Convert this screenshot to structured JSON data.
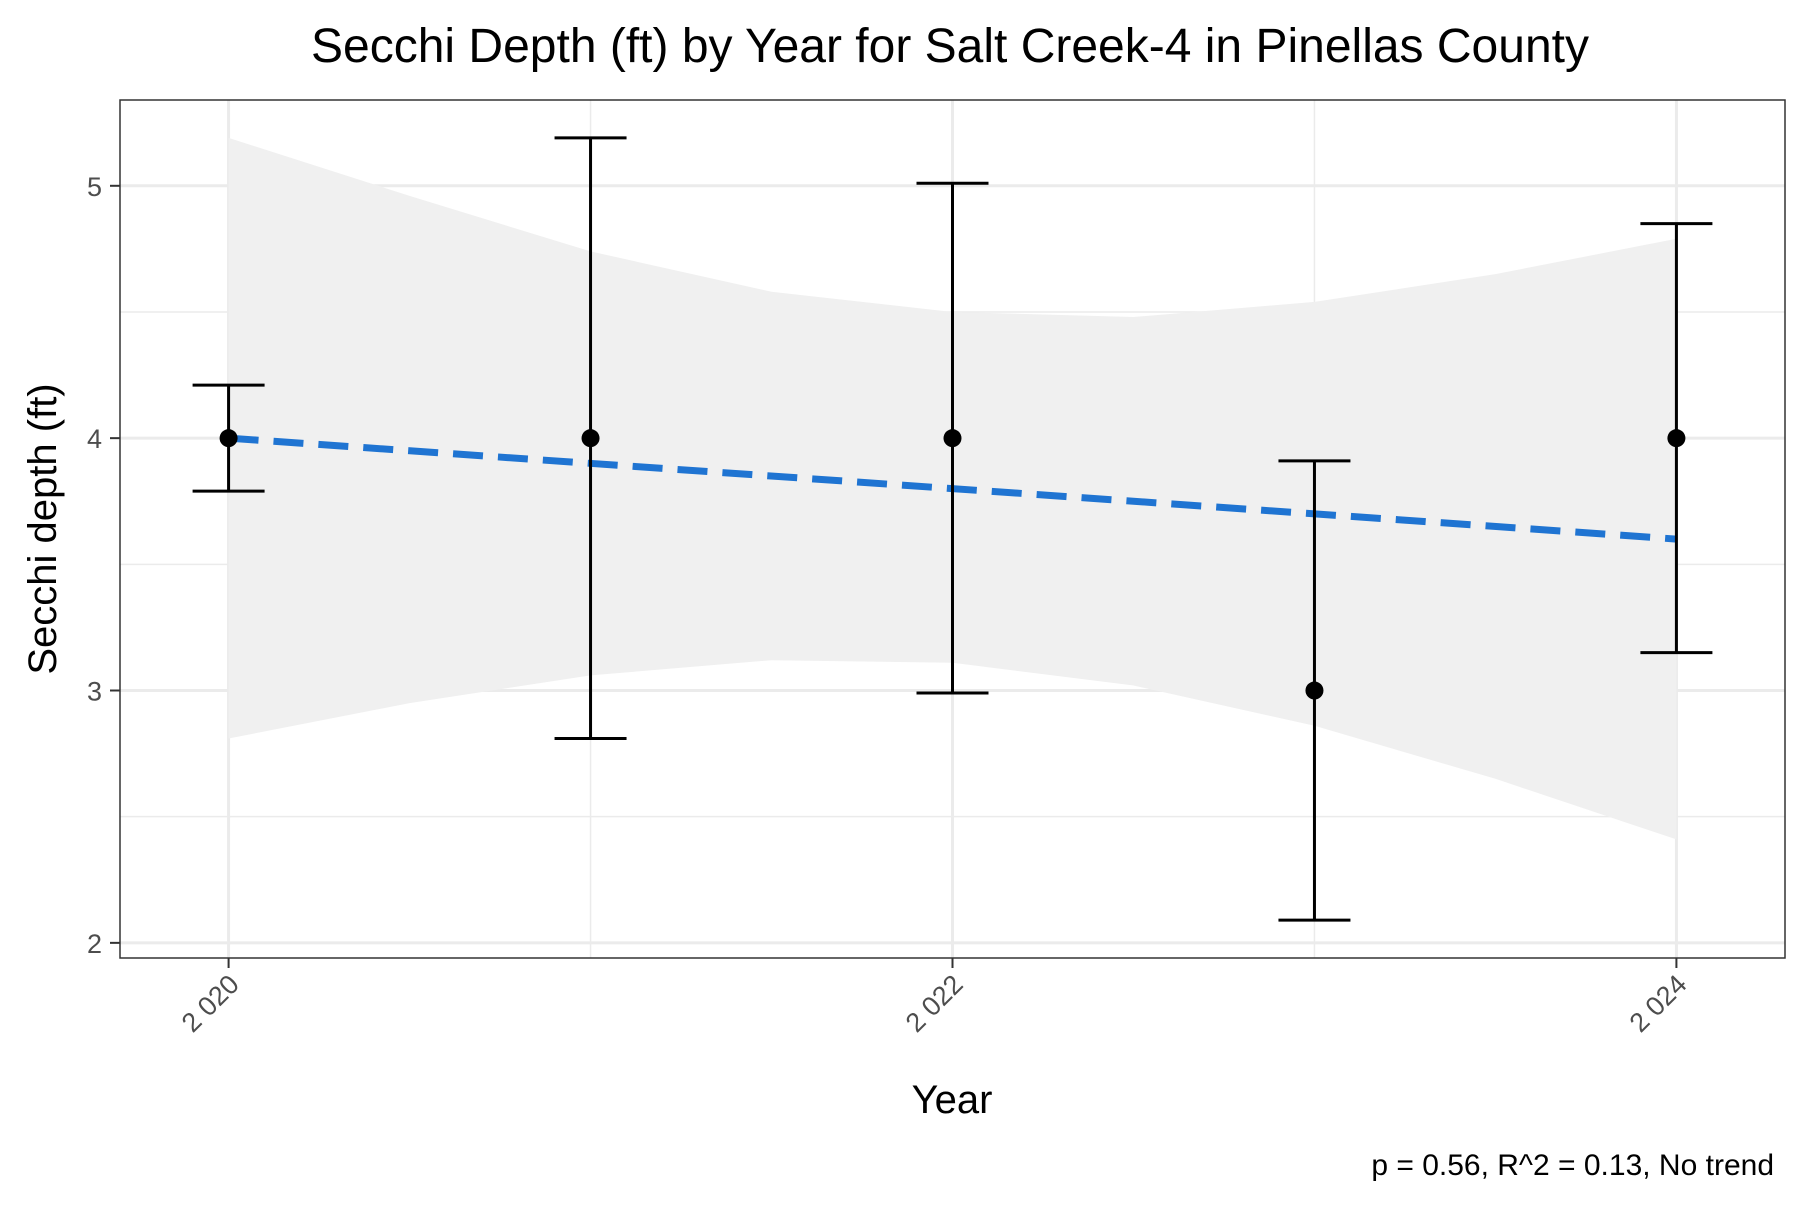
{
  "chart_data": {
    "type": "scatter",
    "title": "Secchi Depth (ft) by Year for Salt Creek-4 in Pinellas County",
    "xlabel": "Year",
    "ylabel": "Secchi depth (ft)",
    "annotation": "p = 0.56, R^2 = 0.13, No trend",
    "xlim": [
      2019.7,
      2024.3
    ],
    "ylim": [
      1.94,
      5.34
    ],
    "x_ticks": [
      2020,
      2022,
      2024
    ],
    "x_tick_labels": [
      "2 020",
      "2 022",
      "2 024"
    ],
    "y_ticks": [
      2,
      3,
      4,
      5
    ],
    "y_tick_labels": [
      "2",
      "3",
      "4",
      "5"
    ],
    "grid": true,
    "x": [
      2020,
      2021,
      2022,
      2023,
      2024
    ],
    "values": [
      4.0,
      4.0,
      4.0,
      3.0,
      4.0
    ],
    "error_low": [
      3.79,
      2.81,
      2.99,
      2.09,
      3.15
    ],
    "error_high": [
      4.21,
      5.19,
      5.01,
      3.91,
      4.85
    ],
    "trend": {
      "type": "linear",
      "style": "dashed",
      "color": "#1f74d2",
      "x": [
        2020,
        2024
      ],
      "y": [
        4.0,
        3.6
      ]
    },
    "confidence_band": {
      "color": "#f0f0f0",
      "x": [
        2020,
        2020.5,
        2021,
        2021.5,
        2022,
        2022.5,
        2023,
        2023.5,
        2024
      ],
      "lower": [
        2.81,
        2.95,
        3.06,
        3.12,
        3.11,
        3.02,
        2.86,
        2.65,
        2.41
      ],
      "upper": [
        5.19,
        4.96,
        4.74,
        4.58,
        4.5,
        4.48,
        4.54,
        4.65,
        4.79
      ]
    },
    "colors": {
      "points": "#000000",
      "errorbars": "#000000",
      "grid": "#ebebeb",
      "panel_border": "#333333"
    }
  }
}
